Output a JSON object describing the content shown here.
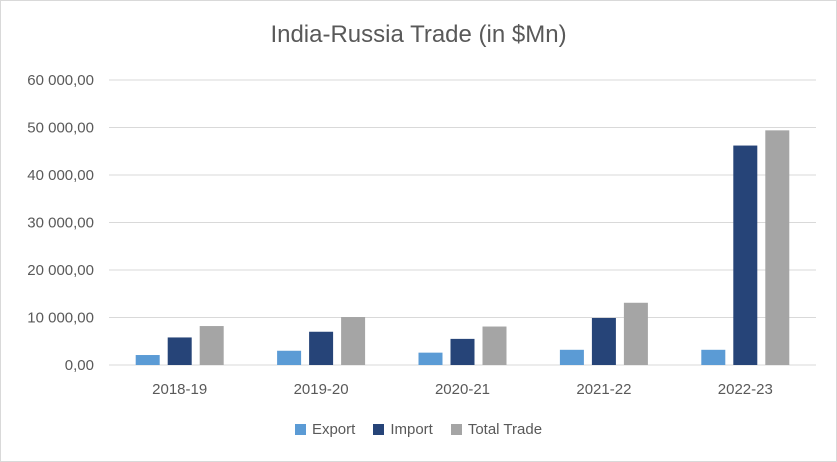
{
  "chart_data": {
    "type": "bar",
    "title": "India-Russia Trade (in $Mn)",
    "xlabel": "",
    "ylabel": "",
    "categories": [
      "2018-19",
      "2019-20",
      "2020-21",
      "2021-22",
      "2022-23"
    ],
    "series": [
      {
        "name": "Export",
        "color": "#5b9bd5",
        "values": [
          2100,
          3000,
          2600,
          3200,
          3200
        ]
      },
      {
        "name": "Import",
        "color": "#264478",
        "values": [
          5800,
          7000,
          5500,
          9900,
          46200
        ]
      },
      {
        "name": "Total Trade",
        "color": "#a5a5a5",
        "values": [
          8200,
          10100,
          8100,
          13100,
          49400
        ]
      }
    ],
    "ylim": [
      0,
      60000
    ],
    "yticks": [
      0,
      10000,
      20000,
      30000,
      40000,
      50000,
      60000
    ],
    "ytick_labels": [
      "0,00",
      "10 000,00",
      "20 000,00",
      "30 000,00",
      "40 000,00",
      "50 000,00",
      "60 000,00"
    ],
    "grid": true,
    "legend_position": "bottom"
  }
}
